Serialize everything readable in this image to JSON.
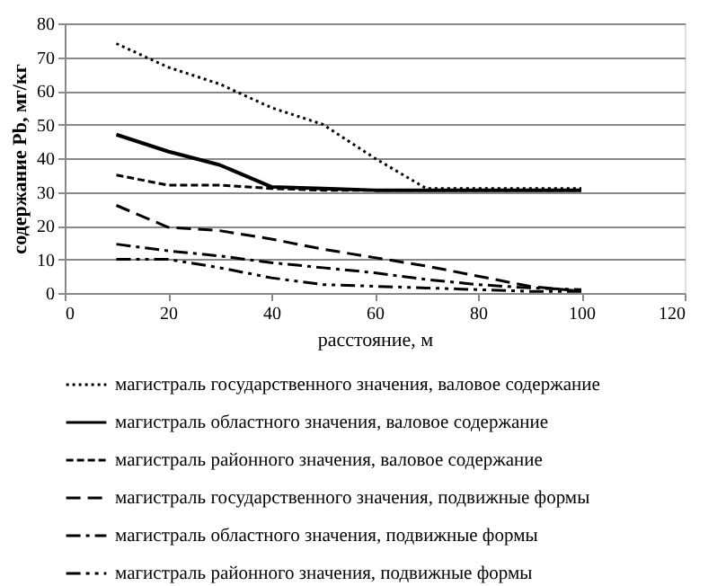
{
  "chart_data": {
    "type": "line",
    "xlabel": "расстояние, м",
    "ylabel": "содержание Pb, мг/кг",
    "x": [
      10,
      20,
      30,
      40,
      50,
      60,
      70,
      80,
      90,
      100
    ],
    "xlim": [
      0,
      120
    ],
    "xticks": [
      0,
      20,
      40,
      60,
      80,
      100,
      120
    ],
    "ylim": [
      0,
      80
    ],
    "yticks": [
      0,
      10,
      20,
      30,
      40,
      50,
      60,
      70,
      80
    ],
    "grid": "y",
    "legend": "bottom",
    "marker": "none",
    "series": [
      {
        "name": "магистраль государственного значения, валовое содержание",
        "color": "#000000",
        "line_style": "dotted",
        "values": [
          74,
          67,
          62,
          55,
          50,
          40,
          31,
          31,
          31,
          31
        ]
      },
      {
        "name": "магистраль областного значения, валовое содержание",
        "color": "#000000",
        "line_style": "solid",
        "values": [
          47,
          42,
          38,
          31.5,
          31,
          30.5,
          30.5,
          30.5,
          30.5,
          30.5
        ]
      },
      {
        "name": "магистраль районного значения, валовое содержание",
        "color": "#000000",
        "line_style": "dashed",
        "values": [
          35,
          32,
          32,
          31,
          30.5,
          30.5,
          30.5,
          30.5,
          30.5,
          30.5
        ]
      },
      {
        "name": "магистраль государственного значения, подвижные формы",
        "color": "#000000",
        "line_style": "longdash",
        "values": [
          26,
          19.5,
          18.5,
          16,
          13,
          10.5,
          8,
          5,
          2,
          0.5
        ]
      },
      {
        "name": "магистраль областного значения, подвижные формы",
        "color": "#000000",
        "line_style": "dashdot",
        "values": [
          14.5,
          12.5,
          11,
          9,
          7.5,
          6,
          4,
          2.5,
          1.5,
          1
        ]
      },
      {
        "name": "магистраль районного значения, подвижные формы",
        "color": "#000000",
        "line_style": "dashdotdot",
        "values": [
          10,
          10,
          7.5,
          4.5,
          2.5,
          2,
          1.5,
          1,
          0.5,
          0.5
        ]
      }
    ]
  }
}
